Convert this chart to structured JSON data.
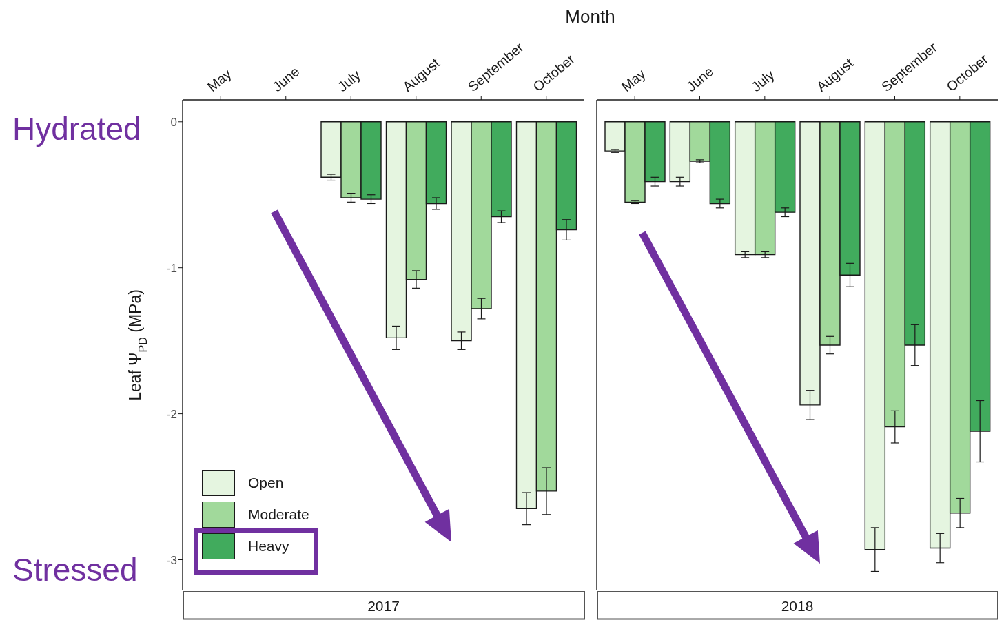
{
  "chart_data": [
    {
      "type": "bar",
      "title": "2017",
      "xlabel": "Month",
      "ylabel": "Leaf Ψ$_{PD}$ (MPa)",
      "annotations": [
        "Hydrated",
        "Stressed"
      ],
      "categories": [
        "May",
        "June",
        "July",
        "August",
        "September",
        "October"
      ],
      "series": [
        {
          "name": "Open",
          "color": "#e5f5e0",
          "values": [
            null,
            null,
            -0.38,
            -1.48,
            -1.5,
            -2.65
          ],
          "errors": [
            null,
            null,
            0.02,
            0.08,
            0.06,
            0.11
          ]
        },
        {
          "name": "Moderate",
          "color": "#a1d99b",
          "values": [
            null,
            null,
            -0.52,
            -1.08,
            -1.28,
            -2.53
          ],
          "errors": [
            null,
            null,
            0.03,
            0.06,
            0.07,
            0.16
          ]
        },
        {
          "name": "Heavy",
          "color": "#41ab5d",
          "values": [
            null,
            null,
            -0.53,
            -0.56,
            -0.65,
            -0.74
          ],
          "errors": [
            null,
            null,
            0.03,
            0.04,
            0.04,
            0.07
          ]
        }
      ],
      "ylim": [
        -3.21,
        0.15
      ],
      "yticks": [
        0,
        -1,
        -2,
        -3
      ],
      "legend": "bottom left"
    },
    {
      "type": "bar",
      "title": "2018",
      "categories": [
        "May",
        "June",
        "July",
        "August",
        "September",
        "October"
      ],
      "series": [
        {
          "color": "#e5f5e0",
          "values": [
            -0.2,
            -0.41,
            -0.91,
            -1.94,
            -2.93,
            -2.92
          ],
          "errors": [
            0.01,
            0.03,
            0.02,
            0.1,
            0.15,
            0.1
          ]
        },
        {
          "color": "#a1d99b",
          "values": [
            -0.55,
            -0.27,
            -0.91,
            -1.53,
            -2.09,
            -2.68
          ],
          "errors": [
            0.01,
            0.01,
            0.02,
            0.06,
            0.11,
            0.1
          ]
        },
        {
          "color": "#41ab5d",
          "values": [
            -0.41,
            -0.56,
            -0.62,
            -1.05,
            -1.53,
            -2.12
          ],
          "errors": [
            0.03,
            0.03,
            0.03,
            0.08,
            0.14,
            0.21
          ]
        }
      ],
      "ylim": [
        -3.21,
        0.15
      ],
      "tick_labels": "x"
    }
  ]
}
